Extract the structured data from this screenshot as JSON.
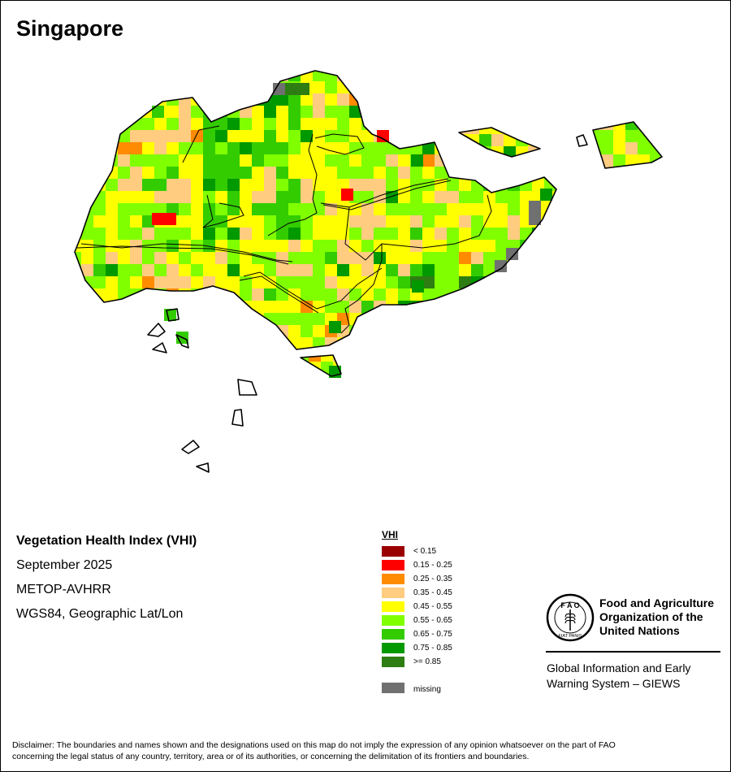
{
  "map": {
    "title": "Singapore"
  },
  "info": {
    "title": "Vegetation Health Index (VHI)",
    "date": "September 2025",
    "sensor": "METOP-AVHRR",
    "projection": "WGS84, Geographic Lat/Lon"
  },
  "legend": {
    "title": "VHI",
    "items": [
      {
        "label": "< 0.15",
        "color": "#9b0000"
      },
      {
        "label": "0.15 - 0.25",
        "color": "#ff0000"
      },
      {
        "label": "0.25 - 0.35",
        "color": "#ff8c00"
      },
      {
        "label": "0.35 - 0.45",
        "color": "#ffcc80"
      },
      {
        "label": "0.45 - 0.55",
        "color": "#ffff00"
      },
      {
        "label": "0.55 - 0.65",
        "color": "#80ff00"
      },
      {
        "label": "0.65 - 0.75",
        "color": "#33cc00"
      },
      {
        "label": "0.75 - 0.85",
        "color": "#009900"
      },
      {
        "label": ">= 0.85",
        "color": "#2e7d12"
      }
    ],
    "missing": {
      "label": "missing",
      "color": "#707070"
    }
  },
  "org": {
    "name_line1": "Food and Agriculture",
    "name_line2": "Organization of the",
    "name_line3": "United Nations",
    "system_line1": "Global Information and Early",
    "system_line2": "Warning System – GIEWS",
    "logo_top": "F A O",
    "logo_bottom": "FIAT PANIS"
  },
  "disclaimer": {
    "line1": "Disclaimer: The boundaries and names shown and the designations used on this map do not imply the expression of any opinion whatsoever on the part of FAO",
    "line2": "concerning the legal status of any country, territory, area or of its authorities, or concerning the delimitation of its frontiers and boundaries."
  }
}
